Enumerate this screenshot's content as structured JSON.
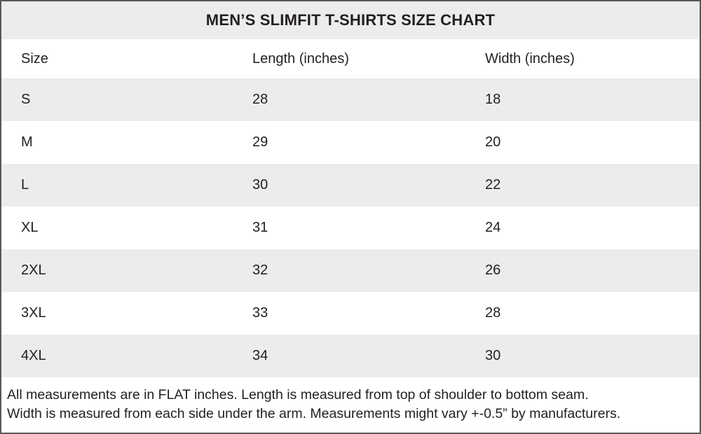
{
  "title": "MEN’S SLIMFIT T-SHIRTS SIZE CHART",
  "table": {
    "headers": [
      "Size",
      "Length (inches)",
      "Width (inches)"
    ],
    "rows": [
      {
        "size": "S",
        "length": "28",
        "width": "18"
      },
      {
        "size": "M",
        "length": "29",
        "width": "20"
      },
      {
        "size": "L",
        "length": "30",
        "width": "22"
      },
      {
        "size": "XL",
        "length": "31",
        "width": "24"
      },
      {
        "size": "2XL",
        "length": "32",
        "width": "26"
      },
      {
        "size": "3XL",
        "length": "33",
        "width": "28"
      },
      {
        "size": "4XL",
        "length": "34",
        "width": "30"
      }
    ]
  },
  "footnote": {
    "line1": "All measurements are in FLAT inches. Length is measured from top of shoulder to bottom seam.",
    "line2": "Width is measured from each side under the arm. Measurements might vary +-0.5” by manufacturers."
  },
  "colors": {
    "stripe_bg": "#ececec",
    "title_bg": "#ececec",
    "border": "#58585a",
    "text": "#231f20"
  }
}
